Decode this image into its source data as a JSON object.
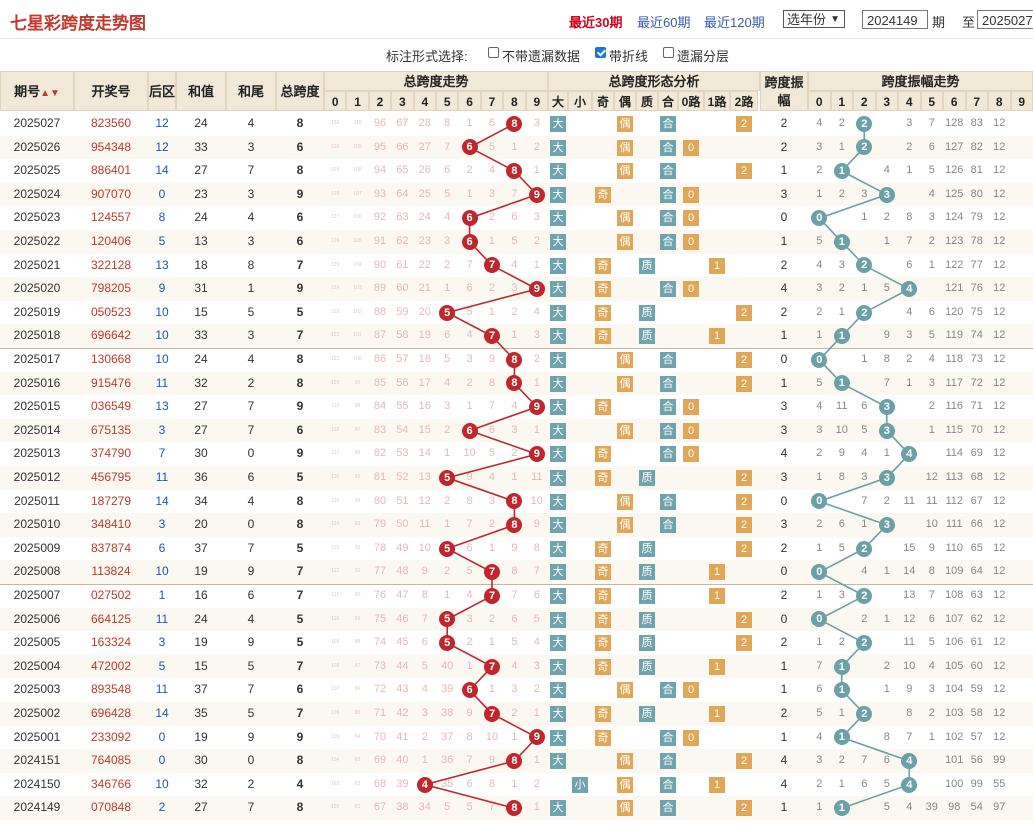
{
  "header": {
    "title": "七星彩跨度走势图",
    "ranges": [
      {
        "label": "最近30期",
        "active": true
      },
      {
        "label": "最近60期",
        "active": false
      },
      {
        "label": "最近120期",
        "active": false
      }
    ],
    "year_select": "选年份",
    "from_value": "2024149",
    "from_label": "期",
    "to_label": "至",
    "to_value": "2025027"
  },
  "options": {
    "label": "标注形式选择:",
    "items": [
      {
        "label": "不带遗漏数据",
        "checked": false
      },
      {
        "label": "带折线",
        "checked": true
      },
      {
        "label": "遗漏分层",
        "checked": false
      }
    ]
  },
  "columns": {
    "period": "期号",
    "draw": "开奖号",
    "back": "后区",
    "sum": "和值",
    "tail": "和尾",
    "span": "总跨度",
    "trend": "总跨度走势",
    "form": "总跨度形态分析",
    "form_sub": [
      "大",
      "小",
      "奇",
      "偶",
      "质",
      "合",
      "0路",
      "1路",
      "2路"
    ],
    "amp": "跨度振幅",
    "amp_trend": "跨度振幅走势",
    "digits": [
      "0",
      "1",
      "2",
      "3",
      "4",
      "5",
      "6",
      "7",
      "8",
      "9"
    ]
  },
  "colors": {
    "red": "#c0262d",
    "teal": "#6aa0a6",
    "accent": "#c0392b"
  },
  "rows": [
    {
      "period": "2025027",
      "draw": "823560",
      "back": "12",
      "sum": "24",
      "tail": "4",
      "span": 8,
      "amp": 2,
      "miss": [
        "130",
        "110",
        "96",
        "67",
        "28",
        "8",
        "1",
        "6",
        "",
        "3"
      ],
      "amiss": [
        "4",
        "2",
        "",
        "3",
        "7",
        "128",
        "83",
        "12"
      ]
    },
    {
      "period": "2025026",
      "draw": "954348",
      "back": "12",
      "sum": "33",
      "tail": "3",
      "span": 6,
      "amp": 2,
      "miss": [
        "130",
        "109",
        "95",
        "66",
        "27",
        "7",
        "",
        "5",
        "1",
        "2"
      ],
      "amiss": [
        "3",
        "1",
        "",
        "2",
        "6",
        "127",
        "82",
        "12"
      ]
    },
    {
      "period": "2025025",
      "draw": "886401",
      "back": "14",
      "sum": "27",
      "tail": "7",
      "span": 8,
      "amp": 1,
      "miss": [
        "129",
        "108",
        "94",
        "65",
        "26",
        "6",
        "2",
        "4",
        "",
        "1"
      ],
      "amiss": [
        "2",
        "",
        "4",
        "1",
        "5",
        "126",
        "81",
        "12"
      ]
    },
    {
      "period": "2025024",
      "draw": "907070",
      "back": "0",
      "sum": "23",
      "tail": "3",
      "span": 9,
      "amp": 3,
      "miss": [
        "128",
        "107",
        "93",
        "64",
        "25",
        "5",
        "1",
        "3",
        "7",
        ""
      ],
      "amiss": [
        "1",
        "2",
        "3",
        "",
        "4",
        "125",
        "80",
        "12"
      ]
    },
    {
      "period": "2025023",
      "draw": "124557",
      "back": "8",
      "sum": "24",
      "tail": "4",
      "span": 6,
      "amp": 0,
      "miss": [
        "127",
        "106",
        "92",
        "63",
        "24",
        "4",
        "",
        "2",
        "6",
        "3"
      ],
      "amiss": [
        "",
        "1",
        "2",
        "8",
        "3",
        "124",
        "79",
        "12"
      ]
    },
    {
      "period": "2025022",
      "draw": "120406",
      "back": "5",
      "sum": "13",
      "tail": "3",
      "span": 6,
      "amp": 1,
      "miss": [
        "126",
        "105",
        "91",
        "62",
        "23",
        "3",
        "",
        "1",
        "5",
        "2"
      ],
      "amiss": [
        "5",
        "",
        "1",
        "7",
        "2",
        "123",
        "78",
        "12"
      ]
    },
    {
      "period": "2025021",
      "draw": "322128",
      "back": "13",
      "sum": "18",
      "tail": "8",
      "span": 7,
      "amp": 2,
      "miss": [
        "125",
        "104",
        "90",
        "61",
        "22",
        "2",
        "7",
        "",
        "4",
        "1"
      ],
      "amiss": [
        "4",
        "3",
        "",
        "6",
        "1",
        "122",
        "77",
        "12"
      ]
    },
    {
      "period": "2025020",
      "draw": "798205",
      "back": "9",
      "sum": "31",
      "tail": "1",
      "span": 9,
      "amp": 4,
      "miss": [
        "124",
        "103",
        "89",
        "60",
        "21",
        "1",
        "6",
        "2",
        "3",
        ""
      ],
      "amiss": [
        "3",
        "2",
        "1",
        "5",
        "",
        "121",
        "76",
        "12"
      ]
    },
    {
      "period": "2025019",
      "draw": "050523",
      "back": "10",
      "sum": "15",
      "tail": "5",
      "span": 5,
      "amp": 2,
      "miss": [
        "123",
        "102",
        "88",
        "59",
        "20",
        "",
        "5",
        "1",
        "2",
        "4"
      ],
      "amiss": [
        "2",
        "1",
        "",
        "4",
        "6",
        "120",
        "75",
        "12"
      ]
    },
    {
      "period": "2025018",
      "draw": "696642",
      "back": "10",
      "sum": "33",
      "tail": "3",
      "span": 7,
      "amp": 1,
      "miss": [
        "122",
        "101",
        "87",
        "58",
        "19",
        "6",
        "4",
        "",
        "1",
        "3"
      ],
      "amiss": [
        "1",
        "",
        "9",
        "3",
        "5",
        "119",
        "74",
        "12"
      ]
    },
    {
      "period": "2025017",
      "draw": "130668",
      "back": "10",
      "sum": "24",
      "tail": "4",
      "span": 8,
      "amp": 0,
      "miss": [
        "121",
        "100",
        "86",
        "57",
        "18",
        "5",
        "3",
        "9",
        "",
        "2"
      ],
      "amiss": [
        "",
        "1",
        "8",
        "2",
        "4",
        "118",
        "73",
        "12"
      ]
    },
    {
      "period": "2025016",
      "draw": "915476",
      "back": "11",
      "sum": "32",
      "tail": "2",
      "span": 8,
      "amp": 1,
      "miss": [
        "120",
        "99",
        "85",
        "56",
        "17",
        "4",
        "2",
        "8",
        "",
        "1"
      ],
      "amiss": [
        "5",
        "",
        "7",
        "1",
        "3",
        "117",
        "72",
        "12"
      ]
    },
    {
      "period": "2025015",
      "draw": "036549",
      "back": "13",
      "sum": "27",
      "tail": "7",
      "span": 9,
      "amp": 3,
      "miss": [
        "119",
        "98",
        "84",
        "55",
        "16",
        "3",
        "1",
        "7",
        "4",
        ""
      ],
      "amiss": [
        "4",
        "11",
        "6",
        "",
        "2",
        "116",
        "71",
        "12"
      ]
    },
    {
      "period": "2025014",
      "draw": "675135",
      "back": "3",
      "sum": "27",
      "tail": "7",
      "span": 6,
      "amp": 3,
      "miss": [
        "118",
        "97",
        "83",
        "54",
        "15",
        "2",
        "",
        "6",
        "3",
        "1"
      ],
      "amiss": [
        "3",
        "10",
        "5",
        "",
        "1",
        "115",
        "70",
        "12"
      ]
    },
    {
      "period": "2025013",
      "draw": "374790",
      "back": "7",
      "sum": "30",
      "tail": "0",
      "span": 9,
      "amp": 4,
      "miss": [
        "117",
        "96",
        "82",
        "53",
        "14",
        "1",
        "10",
        "5",
        "2",
        ""
      ],
      "amiss": [
        "2",
        "9",
        "4",
        "1",
        "",
        "114",
        "69",
        "12"
      ]
    },
    {
      "period": "2025012",
      "draw": "456795",
      "back": "11",
      "sum": "36",
      "tail": "6",
      "span": 5,
      "amp": 3,
      "miss": [
        "116",
        "95",
        "81",
        "52",
        "13",
        "",
        "9",
        "4",
        "1",
        "11"
      ],
      "amiss": [
        "1",
        "8",
        "3",
        "",
        "12",
        "113",
        "68",
        "12"
      ]
    },
    {
      "period": "2025011",
      "draw": "187279",
      "back": "14",
      "sum": "34",
      "tail": "4",
      "span": 8,
      "amp": 0,
      "miss": [
        "115",
        "94",
        "80",
        "51",
        "12",
        "2",
        "8",
        "3",
        "",
        "10"
      ],
      "amiss": [
        "",
        "7",
        "2",
        "11",
        "11",
        "112",
        "67",
        "12"
      ]
    },
    {
      "period": "2025010",
      "draw": "348410",
      "back": "3",
      "sum": "20",
      "tail": "0",
      "span": 8,
      "amp": 3,
      "miss": [
        "114",
        "93",
        "79",
        "50",
        "11",
        "1",
        "7",
        "2",
        "",
        "9"
      ],
      "amiss": [
        "2",
        "6",
        "1",
        "",
        "10",
        "111",
        "66",
        "12"
      ]
    },
    {
      "period": "2025009",
      "draw": "837874",
      "back": "6",
      "sum": "37",
      "tail": "7",
      "span": 5,
      "amp": 2,
      "miss": [
        "113",
        "92",
        "78",
        "49",
        "10",
        "",
        "6",
        "1",
        "9",
        "8"
      ],
      "amiss": [
        "1",
        "5",
        "",
        "15",
        "9",
        "110",
        "65",
        "12"
      ]
    },
    {
      "period": "2025008",
      "draw": "113824",
      "back": "10",
      "sum": "19",
      "tail": "9",
      "span": 7,
      "amp": 0,
      "miss": [
        "112",
        "91",
        "77",
        "48",
        "9",
        "2",
        "5",
        "",
        "8",
        "7"
      ],
      "amiss": [
        "",
        "4",
        "1",
        "14",
        "8",
        "109",
        "64",
        "12"
      ]
    },
    {
      "period": "2025007",
      "draw": "027502",
      "back": "1",
      "sum": "16",
      "tail": "6",
      "span": 7,
      "amp": 2,
      "miss": [
        "111",
        "90",
        "76",
        "47",
        "8",
        "1",
        "4",
        "",
        "7",
        "6"
      ],
      "amiss": [
        "1",
        "3",
        "",
        "13",
        "7",
        "108",
        "63",
        "12"
      ]
    },
    {
      "period": "2025006",
      "draw": "664125",
      "back": "11",
      "sum": "24",
      "tail": "4",
      "span": 5,
      "amp": 0,
      "miss": [
        "110",
        "89",
        "75",
        "46",
        "7",
        "",
        "3",
        "2",
        "6",
        "5"
      ],
      "amiss": [
        "",
        "2",
        "1",
        "12",
        "6",
        "107",
        "62",
        "12"
      ]
    },
    {
      "period": "2025005",
      "draw": "163324",
      "back": "3",
      "sum": "19",
      "tail": "9",
      "span": 5,
      "amp": 2,
      "miss": [
        "109",
        "88",
        "74",
        "45",
        "6",
        "",
        "2",
        "1",
        "5",
        "4"
      ],
      "amiss": [
        "1",
        "2",
        "",
        "11",
        "5",
        "106",
        "61",
        "12"
      ]
    },
    {
      "period": "2025004",
      "draw": "472002",
      "back": "5",
      "sum": "15",
      "tail": "5",
      "span": 7,
      "amp": 1,
      "miss": [
        "108",
        "87",
        "73",
        "44",
        "5",
        "40",
        "1",
        "",
        "4",
        "3"
      ],
      "amiss": [
        "7",
        "",
        "2",
        "10",
        "4",
        "105",
        "60",
        "12"
      ]
    },
    {
      "period": "2025003",
      "draw": "893548",
      "back": "11",
      "sum": "37",
      "tail": "7",
      "span": 6,
      "amp": 1,
      "miss": [
        "107",
        "86",
        "72",
        "43",
        "4",
        "39",
        "",
        "1",
        "3",
        "2"
      ],
      "amiss": [
        "6",
        "",
        "1",
        "9",
        "3",
        "104",
        "59",
        "12"
      ]
    },
    {
      "period": "2025002",
      "draw": "696428",
      "back": "14",
      "sum": "35",
      "tail": "5",
      "span": 7,
      "amp": 2,
      "miss": [
        "106",
        "85",
        "71",
        "42",
        "3",
        "38",
        "9",
        "",
        "2",
        "1"
      ],
      "amiss": [
        "5",
        "1",
        "",
        "8",
        "2",
        "103",
        "58",
        "12"
      ]
    },
    {
      "period": "2025001",
      "draw": "233092",
      "back": "0",
      "sum": "19",
      "tail": "9",
      "span": 9,
      "amp": 1,
      "miss": [
        "105",
        "84",
        "70",
        "41",
        "2",
        "37",
        "8",
        "10",
        "1",
        ""
      ],
      "amiss": [
        "4",
        "",
        "8",
        "7",
        "1",
        "102",
        "57",
        "12"
      ]
    },
    {
      "period": "2024151",
      "draw": "764085",
      "back": "0",
      "sum": "30",
      "tail": "0",
      "span": 8,
      "amp": 4,
      "miss": [
        "104",
        "83",
        "69",
        "40",
        "1",
        "36",
        "7",
        "9",
        "",
        "1"
      ],
      "amiss": [
        "3",
        "2",
        "7",
        "6",
        "",
        "101",
        "56",
        "99"
      ]
    },
    {
      "period": "2024150",
      "draw": "346766",
      "back": "10",
      "sum": "32",
      "tail": "2",
      "span": 4,
      "amp": 4,
      "miss": [
        "103",
        "82",
        "68",
        "39",
        "",
        "35",
        "6",
        "8",
        "1",
        "2"
      ],
      "amiss": [
        "2",
        "1",
        "6",
        "5",
        "",
        "100",
        "99",
        "55"
      ]
    },
    {
      "period": "2024149",
      "draw": "070848",
      "back": "2",
      "sum": "27",
      "tail": "7",
      "span": 8,
      "amp": 1,
      "miss": [
        "102",
        "81",
        "67",
        "38",
        "34",
        "5",
        "5",
        "7",
        "",
        "1"
      ],
      "amiss": [
        "1",
        "",
        "5",
        "4",
        "39",
        "98",
        "54",
        "97"
      ]
    }
  ]
}
